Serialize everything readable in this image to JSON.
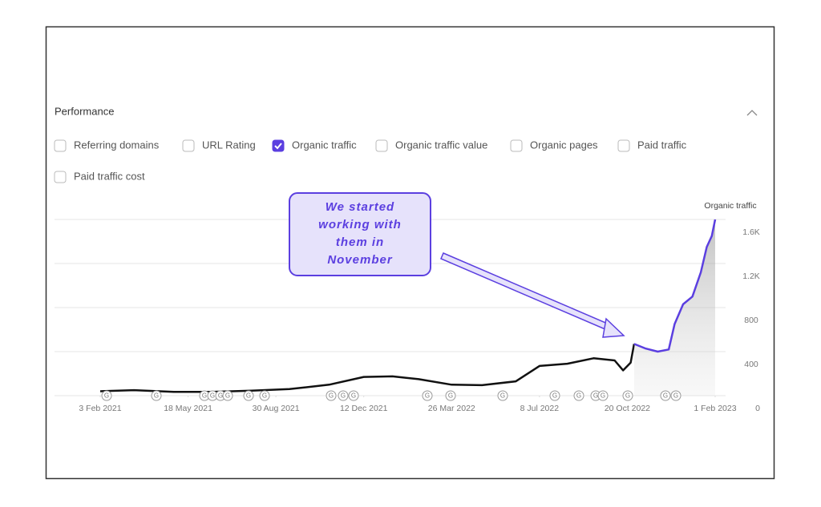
{
  "header": {
    "title": "Performance"
  },
  "metrics": [
    {
      "label": "Referring domains",
      "checked": false
    },
    {
      "label": "URL Rating",
      "checked": false
    },
    {
      "label": "Organic traffic",
      "checked": true
    },
    {
      "label": "Organic traffic value",
      "checked": false
    },
    {
      "label": "Organic pages",
      "checked": false
    },
    {
      "label": "Paid traffic",
      "checked": false
    },
    {
      "label": "Paid traffic cost",
      "checked": false
    }
  ],
  "annotation": {
    "lines": [
      "We started",
      "working with",
      "them in",
      "November"
    ]
  },
  "update_marker": "G",
  "chart_data": {
    "type": "line",
    "x": [
      "2021-02-03",
      "2021-03-15",
      "2021-05-01",
      "2021-06-15",
      "2021-08-01",
      "2021-09-15",
      "2021-11-01",
      "2021-12-12",
      "2022-01-15",
      "2022-02-15",
      "2022-03-26",
      "2022-05-01",
      "2022-06-10",
      "2022-07-08",
      "2022-08-10",
      "2022-09-10",
      "2022-10-05",
      "2022-10-15",
      "2022-10-24",
      "2022-10-28",
      "2022-11-10",
      "2022-11-25",
      "2022-12-08",
      "2022-12-15",
      "2022-12-25",
      "2023-01-05",
      "2023-01-15",
      "2023-01-22",
      "2023-01-28",
      "2023-02-01"
    ],
    "series": [
      {
        "name": "Organic traffic",
        "color": "#111111",
        "values": [
          40,
          50,
          35,
          35,
          45,
          60,
          100,
          170,
          175,
          150,
          100,
          95,
          130,
          270,
          290,
          340,
          320,
          230,
          300,
          470,
          null,
          null,
          null,
          null,
          null,
          null,
          null,
          null,
          null,
          null
        ]
      },
      {
        "color": "#5b3fe0",
        "values": [
          null,
          null,
          null,
          null,
          null,
          null,
          null,
          null,
          null,
          null,
          null,
          null,
          null,
          null,
          null,
          null,
          null,
          null,
          null,
          470,
          430,
          400,
          420,
          650,
          830,
          900,
          1120,
          1350,
          1450,
          1600
        ]
      }
    ],
    "xlim": [
      "2021-02-03",
      "2023-02-01"
    ],
    "xticks": [
      {
        "value": "2021-02-03",
        "label": "3 Feb 2021"
      },
      {
        "value": "2021-05-18",
        "label": "18 May 2021"
      },
      {
        "value": "2021-08-30",
        "label": "30 Aug 2021"
      },
      {
        "value": "2021-12-12",
        "label": "12 Dec 2021"
      },
      {
        "value": "2022-03-26",
        "label": "26 Mar 2022"
      },
      {
        "value": "2022-07-08",
        "label": "8 Jul 2022"
      },
      {
        "value": "2022-10-20",
        "label": "20 Oct 2022"
      },
      {
        "value": "2023-02-01",
        "label": "1 Feb 2023"
      }
    ],
    "ylim": [
      0,
      1600
    ],
    "yticks": [
      0,
      400,
      800,
      {
        "value": 1200,
        "label": "1.2K"
      },
      {
        "value": 1600,
        "label": "1.6K"
      }
    ],
    "grid": true
  }
}
